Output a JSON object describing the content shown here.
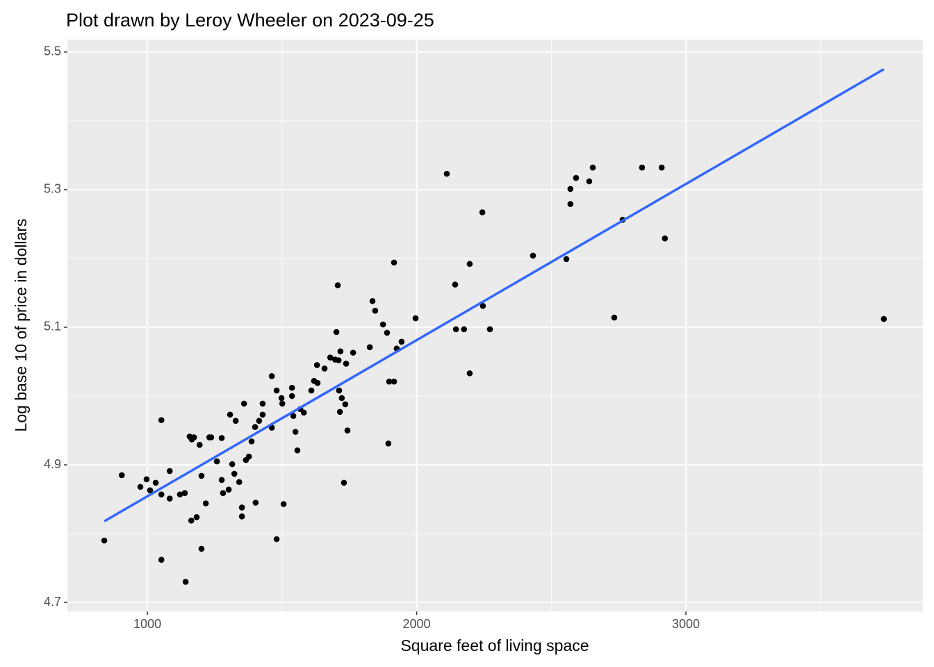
{
  "chart_data": {
    "type": "scatter",
    "title": "Plot drawn by Leroy Wheeler on 2023-09-25",
    "x_label": "Square feet of living space",
    "y_label": "Log base 10 of price in dollars",
    "xlim": [
      703,
      3880
    ],
    "ylim": [
      4.687,
      5.518
    ],
    "xticks": [
      1000,
      2000,
      3000
    ],
    "yticks": [
      {
        "value": 4.7,
        "label": "4.7"
      },
      {
        "value": 4.9,
        "label": "4.9"
      },
      {
        "value": 5.1,
        "label": "5.1"
      },
      {
        "value": 5.3,
        "label": "5.3"
      },
      {
        "value": 5.5,
        "label": "5.5"
      }
    ],
    "grid": true,
    "points": {
      "color": "#000000",
      "x": [
        840,
        905,
        974,
        997,
        1010,
        1031,
        1052,
        1052,
        1052,
        1083,
        1083,
        1121,
        1139,
        1142,
        1157,
        1165,
        1173,
        1163,
        1183,
        1194,
        1201,
        1201,
        1217,
        1230,
        1237,
        1258,
        1276,
        1276,
        1281,
        1302,
        1307,
        1315,
        1323,
        1328,
        1341,
        1351,
        1351,
        1359,
        1366,
        1377,
        1387,
        1400,
        1402,
        1415,
        1428,
        1428,
        1462,
        1462,
        1480,
        1480,
        1498,
        1501,
        1506,
        1537,
        1537,
        1542,
        1550,
        1557,
        1568,
        1581,
        1609,
        1619,
        1630,
        1632,
        1658,
        1679,
        1697,
        1702,
        1707,
        1710,
        1712,
        1715,
        1717,
        1722,
        1730,
        1735,
        1738,
        1743,
        1764,
        1826,
        1836,
        1846,
        1875,
        1890,
        1895,
        1898,
        1916,
        1916,
        1926,
        1944,
        1996,
        2112,
        2143,
        2146,
        2176,
        2197,
        2197,
        2244,
        2246,
        2272,
        2432,
        2556,
        2571,
        2571,
        2592,
        2641,
        2654,
        2734,
        2765,
        2837,
        2910,
        2922,
        3735
      ],
      "y": [
        4.79,
        4.885,
        4.868,
        4.879,
        4.863,
        4.874,
        4.965,
        4.857,
        4.762,
        4.891,
        4.851,
        4.857,
        4.859,
        4.73,
        4.941,
        4.937,
        4.94,
        4.819,
        4.824,
        4.929,
        4.884,
        4.778,
        4.844,
        4.94,
        4.94,
        4.905,
        4.939,
        4.878,
        4.859,
        4.864,
        4.973,
        4.901,
        4.887,
        4.964,
        4.875,
        4.838,
        4.825,
        4.989,
        4.907,
        4.912,
        4.934,
        4.955,
        4.845,
        4.964,
        4.973,
        4.989,
        5.029,
        4.954,
        5.008,
        4.792,
        4.997,
        4.989,
        4.843,
        5.012,
        5.0,
        4.971,
        4.948,
        4.921,
        4.981,
        4.976,
        5.008,
        5.022,
        5.045,
        5.019,
        5.04,
        5.056,
        5.053,
        5.093,
        5.161,
        5.052,
        5.008,
        4.977,
        5.065,
        4.997,
        4.874,
        4.988,
        5.047,
        4.95,
        5.063,
        5.071,
        5.138,
        5.124,
        5.104,
        5.092,
        4.931,
        5.021,
        5.021,
        5.194,
        5.069,
        5.079,
        5.113,
        5.323,
        5.162,
        5.097,
        5.097,
        5.192,
        5.033,
        5.267,
        5.131,
        5.097,
        5.204,
        5.199,
        5.301,
        5.279,
        5.317,
        5.312,
        5.332,
        5.114,
        5.256,
        5.332,
        5.332,
        5.229,
        5.112
      ]
    },
    "trend_line": {
      "color": "#3366ff",
      "x": [
        840,
        3735
      ],
      "y": [
        4.818,
        5.475
      ]
    }
  }
}
